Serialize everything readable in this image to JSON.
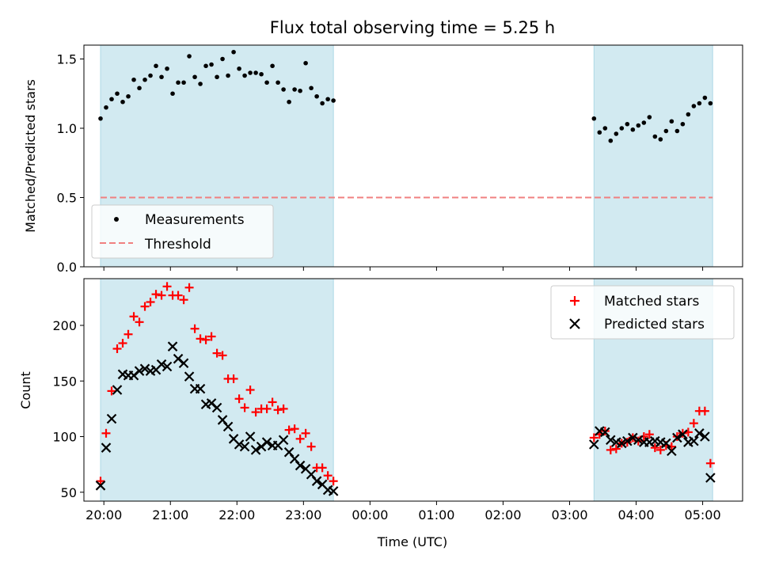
{
  "chart_data": [
    {
      "type": "scatter",
      "title": "Flux total observing time = 5.25 h",
      "ylabel": "Matched/Predicted stars",
      "xlabel": "",
      "ylim": [
        0,
        1.6
      ],
      "yticks": [
        0.0,
        0.5,
        1.0,
        1.5
      ],
      "ytick_labels": [
        "0.0",
        "0.5",
        "1.0",
        "1.5"
      ],
      "grid": false,
      "legend_position": "lower-left",
      "shaded_intervals": [
        [
          "19:57",
          "23:27"
        ],
        [
          "03:22",
          "05:09"
        ]
      ],
      "shade_color": "#add8e6",
      "series": [
        {
          "name": "Measurements",
          "marker": "dot",
          "color": "#000000",
          "points": [
            [
              "19:57",
              1.07
            ],
            [
              "20:02",
              1.15
            ],
            [
              "20:07",
              1.21
            ],
            [
              "20:12",
              1.25
            ],
            [
              "20:17",
              1.19
            ],
            [
              "20:22",
              1.23
            ],
            [
              "20:27",
              1.35
            ],
            [
              "20:32",
              1.29
            ],
            [
              "20:37",
              1.35
            ],
            [
              "20:42",
              1.38
            ],
            [
              "20:47",
              1.45
            ],
            [
              "20:52",
              1.37
            ],
            [
              "20:57",
              1.43
            ],
            [
              "21:02",
              1.25
            ],
            [
              "21:07",
              1.33
            ],
            [
              "21:12",
              1.33
            ],
            [
              "21:17",
              1.52
            ],
            [
              "21:22",
              1.37
            ],
            [
              "21:27",
              1.32
            ],
            [
              "21:32",
              1.45
            ],
            [
              "21:37",
              1.46
            ],
            [
              "21:42",
              1.37
            ],
            [
              "21:47",
              1.5
            ],
            [
              "21:52",
              1.38
            ],
            [
              "21:57",
              1.55
            ],
            [
              "22:02",
              1.43
            ],
            [
              "22:07",
              1.38
            ],
            [
              "22:12",
              1.4
            ],
            [
              "22:17",
              1.4
            ],
            [
              "22:22",
              1.39
            ],
            [
              "22:27",
              1.33
            ],
            [
              "22:32",
              1.45
            ],
            [
              "22:37",
              1.33
            ],
            [
              "22:42",
              1.28
            ],
            [
              "22:47",
              1.19
            ],
            [
              "22:52",
              1.28
            ],
            [
              "22:57",
              1.27
            ],
            [
              "23:02",
              1.47
            ],
            [
              "23:07",
              1.29
            ],
            [
              "23:12",
              1.23
            ],
            [
              "23:17",
              1.18
            ],
            [
              "23:22",
              1.21
            ],
            [
              "23:27",
              1.2
            ],
            [
              "03:22",
              1.07
            ],
            [
              "03:27",
              0.97
            ],
            [
              "03:32",
              1.0
            ],
            [
              "03:37",
              0.91
            ],
            [
              "03:42",
              0.96
            ],
            [
              "03:47",
              1.0
            ],
            [
              "03:52",
              1.03
            ],
            [
              "03:57",
              0.99
            ],
            [
              "04:02",
              1.02
            ],
            [
              "04:07",
              1.04
            ],
            [
              "04:12",
              1.08
            ],
            [
              "04:17",
              0.94
            ],
            [
              "04:22",
              0.92
            ],
            [
              "04:27",
              0.98
            ],
            [
              "04:32",
              1.05
            ],
            [
              "04:37",
              0.98
            ],
            [
              "04:42",
              1.03
            ],
            [
              "04:47",
              1.1
            ],
            [
              "04:52",
              1.16
            ],
            [
              "04:57",
              1.18
            ],
            [
              "05:02",
              1.22
            ],
            [
              "05:07",
              1.18
            ]
          ]
        },
        {
          "name": "Threshold",
          "marker": "dashed-line",
          "color": "#f08080",
          "points": [
            [
              "19:57",
              0.5
            ],
            [
              "05:09",
              0.5
            ]
          ]
        }
      ]
    },
    {
      "type": "scatter",
      "title": "",
      "ylabel": "Count",
      "xlabel": "Time (UTC)",
      "ylim": [
        42,
        242
      ],
      "yticks": [
        50,
        100,
        150,
        200
      ],
      "ytick_labels": [
        "50",
        "100",
        "150",
        "200"
      ],
      "xlim": [
        "19:42",
        "05:36"
      ],
      "xtick_labels": [
        "20:00",
        "21:00",
        "22:00",
        "23:00",
        "00:00",
        "01:00",
        "02:00",
        "03:00",
        "04:00",
        "05:00"
      ],
      "grid": false,
      "legend_position": "top-right",
      "shaded_intervals": [
        [
          "19:57",
          "23:27"
        ],
        [
          "03:22",
          "05:09"
        ]
      ],
      "shade_color": "#add8e6",
      "series": [
        {
          "name": "Matched stars",
          "marker": "plus",
          "color": "#ff0000",
          "points": [
            [
              "19:57",
              60
            ],
            [
              "20:02",
              103
            ],
            [
              "20:07",
              141
            ],
            [
              "20:12",
              179
            ],
            [
              "20:17",
              184
            ],
            [
              "20:22",
              192
            ],
            [
              "20:27",
              208
            ],
            [
              "20:32",
              203
            ],
            [
              "20:37",
              217
            ],
            [
              "20:42",
              221
            ],
            [
              "20:47",
              228
            ],
            [
              "20:52",
              227
            ],
            [
              "20:57",
              235
            ],
            [
              "21:02",
              227
            ],
            [
              "21:07",
              227
            ],
            [
              "21:12",
              223
            ],
            [
              "21:17",
              234
            ],
            [
              "21:22",
              197
            ],
            [
              "21:27",
              188
            ],
            [
              "21:32",
              187
            ],
            [
              "21:37",
              190
            ],
            [
              "21:42",
              175
            ],
            [
              "21:47",
              173
            ],
            [
              "21:52",
              152
            ],
            [
              "21:57",
              152
            ],
            [
              "22:02",
              134
            ],
            [
              "22:07",
              126
            ],
            [
              "22:12",
              142
            ],
            [
              "22:17",
              122
            ],
            [
              "22:22",
              125
            ],
            [
              "22:27",
              125
            ],
            [
              "22:32",
              131
            ],
            [
              "22:37",
              124
            ],
            [
              "22:42",
              125
            ],
            [
              "22:47",
              106
            ],
            [
              "22:52",
              107
            ],
            [
              "22:57",
              98
            ],
            [
              "23:02",
              103
            ],
            [
              "23:07",
              91
            ],
            [
              "23:12",
              72
            ],
            [
              "23:17",
              72
            ],
            [
              "23:22",
              65
            ],
            [
              "23:27",
              60
            ],
            [
              "03:22",
              99
            ],
            [
              "03:27",
              102
            ],
            [
              "03:32",
              105
            ],
            [
              "03:37",
              88
            ],
            [
              "03:42",
              89
            ],
            [
              "03:47",
              94
            ],
            [
              "03:52",
              95
            ],
            [
              "03:57",
              99
            ],
            [
              "04:02",
              96
            ],
            [
              "04:07",
              100
            ],
            [
              "04:12",
              102
            ],
            [
              "04:17",
              90
            ],
            [
              "04:22",
              88
            ],
            [
              "04:27",
              92
            ],
            [
              "04:32",
              91
            ],
            [
              "04:37",
              100
            ],
            [
              "04:42",
              103
            ],
            [
              "04:47",
              104
            ],
            [
              "04:52",
              112
            ],
            [
              "04:57",
              123
            ],
            [
              "05:02",
              123
            ],
            [
              "05:07",
              76
            ]
          ]
        },
        {
          "name": "Predicted stars",
          "marker": "x",
          "color": "#000000",
          "points": [
            [
              "19:57",
              56
            ],
            [
              "20:02",
              90
            ],
            [
              "20:07",
              116
            ],
            [
              "20:12",
              142
            ],
            [
              "20:17",
              156
            ],
            [
              "20:22",
              155
            ],
            [
              "20:27",
              155
            ],
            [
              "20:32",
              159
            ],
            [
              "20:37",
              161
            ],
            [
              "20:42",
              159
            ],
            [
              "20:47",
              160
            ],
            [
              "20:52",
              165
            ],
            [
              "20:57",
              163
            ],
            [
              "21:02",
              181
            ],
            [
              "21:07",
              170
            ],
            [
              "21:12",
              166
            ],
            [
              "21:17",
              154
            ],
            [
              "21:22",
              143
            ],
            [
              "21:27",
              143
            ],
            [
              "21:32",
              129
            ],
            [
              "21:37",
              130
            ],
            [
              "21:42",
              126
            ],
            [
              "21:47",
              115
            ],
            [
              "21:52",
              109
            ],
            [
              "21:57",
              98
            ],
            [
              "22:02",
              93
            ],
            [
              "22:07",
              91
            ],
            [
              "22:12",
              100
            ],
            [
              "22:17",
              88
            ],
            [
              "22:22",
              91
            ],
            [
              "22:27",
              95
            ],
            [
              "22:32",
              92
            ],
            [
              "22:37",
              92
            ],
            [
              "22:42",
              97
            ],
            [
              "22:47",
              86
            ],
            [
              "22:52",
              80
            ],
            [
              "22:57",
              74
            ],
            [
              "23:02",
              71
            ],
            [
              "23:07",
              66
            ],
            [
              "23:12",
              60
            ],
            [
              "23:17",
              57
            ],
            [
              "23:22",
              52
            ],
            [
              "23:27",
              51
            ],
            [
              "03:22",
              93
            ],
            [
              "03:27",
              105
            ],
            [
              "03:32",
              104
            ],
            [
              "03:37",
              97
            ],
            [
              "03:42",
              95
            ],
            [
              "03:47",
              94
            ],
            [
              "03:52",
              96
            ],
            [
              "03:57",
              99
            ],
            [
              "04:02",
              97
            ],
            [
              "04:07",
              95
            ],
            [
              "04:12",
              95
            ],
            [
              "04:17",
              96
            ],
            [
              "04:22",
              95
            ],
            [
              "04:27",
              94
            ],
            [
              "04:32",
              87
            ],
            [
              "04:37",
              99
            ],
            [
              "04:42",
              102
            ],
            [
              "04:47",
              95
            ],
            [
              "04:52",
              96
            ],
            [
              "04:57",
              103
            ],
            [
              "05:02",
              100
            ],
            [
              "05:07",
              63
            ]
          ]
        }
      ]
    }
  ]
}
